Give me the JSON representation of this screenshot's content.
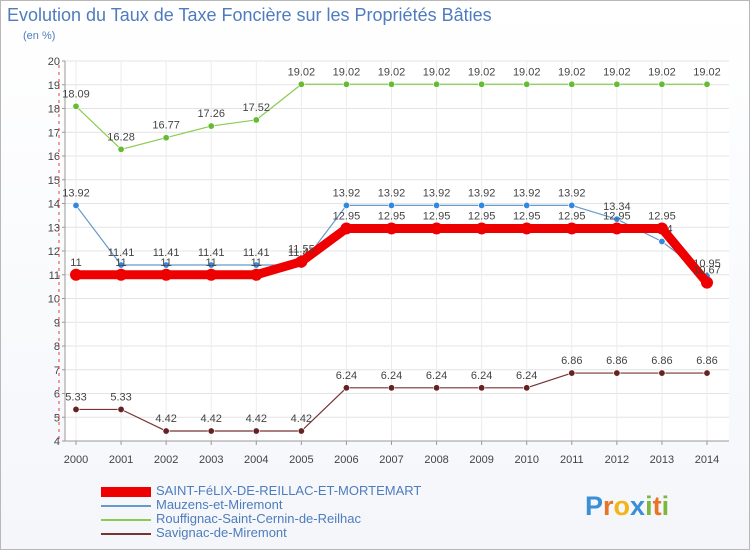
{
  "title": "Evolution du Taux de Taxe Foncière sur les Propriétés Bâties",
  "unit_label": "(en %)",
  "logo": {
    "letters": [
      {
        "ch": "P",
        "color": "#3a8fd6"
      },
      {
        "ch": "r",
        "color": "#e8742a"
      },
      {
        "ch": "o",
        "color": "#f2b418"
      },
      {
        "ch": "x",
        "color": "#3a8fd6"
      },
      {
        "ch": "i",
        "color": "#7cb83e"
      },
      {
        "ch": "t",
        "color": "#e8742a"
      },
      {
        "ch": "i",
        "color": "#7cb83e"
      }
    ]
  },
  "chart_data": {
    "type": "line",
    "title": "Evolution du Taux de Taxe Foncière sur les Propriétés Bâties",
    "ylabel": "(en %)",
    "xlabel": "",
    "ylim": [
      4,
      20
    ],
    "yticks": [
      "4",
      "5",
      "6",
      "7",
      "8",
      "9",
      "10",
      "11",
      "12",
      "13",
      "14",
      "15",
      "16",
      "17",
      "18",
      "19",
      "20"
    ],
    "categories": [
      "2000",
      "2001",
      "2002",
      "2003",
      "2004",
      "2005",
      "2006",
      "2007",
      "2008",
      "2009",
      "2010",
      "2011",
      "2012",
      "2013",
      "2014"
    ],
    "grid": true,
    "legend_position": "bottom-left",
    "series": [
      {
        "name": "Rouffignac-Saint-Cernin-de-Reilhac",
        "color": "#88cc55",
        "dot": "#66bb33",
        "style": "thin",
        "values": [
          18.09,
          16.28,
          16.77,
          17.26,
          17.52,
          19.02,
          19.02,
          19.02,
          19.02,
          19.02,
          19.02,
          19.02,
          19.02,
          19.02,
          19.02
        ],
        "labels": [
          "18.09",
          "16.28",
          "16.77",
          "17.26",
          "17.52",
          "19.02",
          "19.02",
          "19.02",
          "19.02",
          "19.02",
          "19.02",
          "19.02",
          "19.02",
          "19.02",
          "19.02"
        ]
      },
      {
        "name": "Mauzens-et-Miremont",
        "color": "#6699cc",
        "dot": "#3388dd",
        "style": "thin",
        "values": [
          13.92,
          11.41,
          11.41,
          11.41,
          11.41,
          11.41,
          13.92,
          13.92,
          13.92,
          13.92,
          13.92,
          13.92,
          13.34,
          12.4,
          10.95
        ],
        "labels": [
          "13.92",
          "11.41",
          "11.41",
          "11.41",
          "11.41",
          "11.41",
          "13.92",
          "13.92",
          "13.92",
          "13.92",
          "13.92",
          "13.92",
          "13.34",
          "12.4",
          "10.95"
        ]
      },
      {
        "name": "SAINT-FéLIX-DE-REILLAC-ET-MORTEMART",
        "color": "#ee0000",
        "dot": "#ee0000",
        "style": "thick",
        "values": [
          11,
          11,
          11,
          11,
          11,
          11.55,
          12.95,
          12.95,
          12.95,
          12.95,
          12.95,
          12.95,
          12.95,
          12.95,
          10.67
        ],
        "labels": [
          "11",
          "11",
          "11",
          "11",
          "11",
          "11.55",
          "12.95",
          "12.95",
          "12.95",
          "12.95",
          "12.95",
          "12.95",
          "12.95",
          "12.95",
          "10.67"
        ]
      },
      {
        "name": "Savignac-de-Miremont",
        "color": "#773333",
        "dot": "#662222",
        "style": "thin",
        "values": [
          5.33,
          5.33,
          4.42,
          4.42,
          4.42,
          4.42,
          6.24,
          6.24,
          6.24,
          6.24,
          6.24,
          6.86,
          6.86,
          6.86,
          6.86
        ],
        "labels": [
          "5.33",
          "5.33",
          "4.42",
          "4.42",
          "4.42",
          "4.42",
          "6.24",
          "6.24",
          "6.24",
          "6.24",
          "6.24",
          "6.86",
          "6.86",
          "6.86",
          "6.86"
        ]
      }
    ],
    "legend_order": [
      2,
      1,
      0,
      3
    ]
  }
}
